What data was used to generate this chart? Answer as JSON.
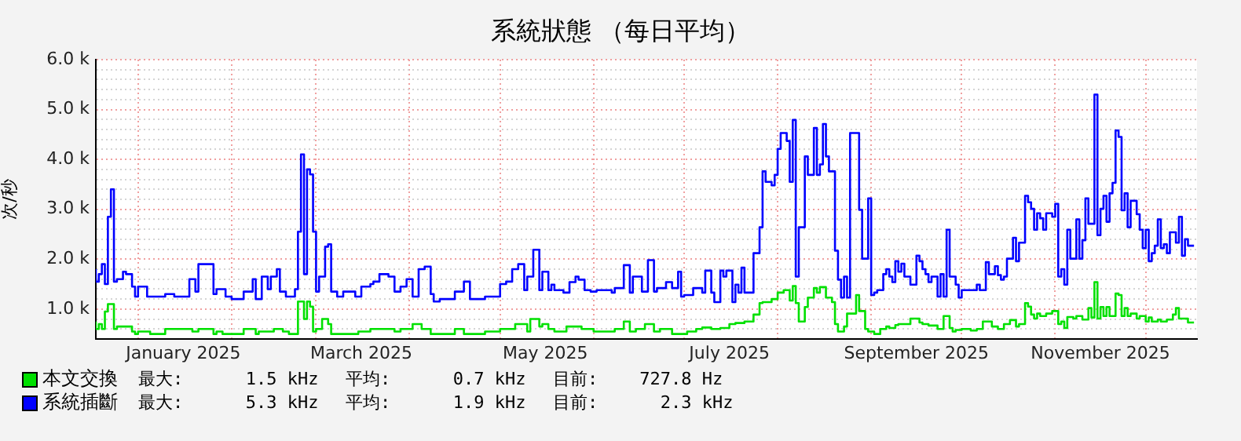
{
  "chart_data": {
    "type": "step",
    "title": "系統狀態 （每日平均）",
    "ylabel": "次/秒",
    "xlim": [
      "2024-12-18",
      "2025-12-18"
    ],
    "xticks": [
      {
        "value": "2025-01-01",
        "label": null
      },
      {
        "value": "2025-01-16",
        "label": "January 2025"
      },
      {
        "value": "2025-02-01",
        "label": null
      },
      {
        "value": "2025-03-01",
        "label": null
      },
      {
        "value": "2025-03-16",
        "label": "March 2025"
      },
      {
        "value": "2025-04-01",
        "label": null
      },
      {
        "value": "2025-05-01",
        "label": null
      },
      {
        "value": "2025-05-16",
        "label": "May 2025"
      },
      {
        "value": "2025-06-01",
        "label": null
      },
      {
        "value": "2025-07-01",
        "label": null
      },
      {
        "value": "2025-07-16",
        "label": "July 2025"
      },
      {
        "value": "2025-08-01",
        "label": null
      },
      {
        "value": "2025-09-01",
        "label": null
      },
      {
        "value": "2025-09-16",
        "label": "September 2025"
      },
      {
        "value": "2025-10-01",
        "label": null
      },
      {
        "value": "2025-11-01",
        "label": null
      },
      {
        "value": "2025-11-16",
        "label": "November 2025"
      },
      {
        "value": "2025-12-01",
        "label": null
      }
    ],
    "ylim": [
      400,
      6000
    ],
    "yticks": [
      {
        "value": 600,
        "label": null
      },
      {
        "value": 800,
        "label": null
      },
      {
        "value": 1000,
        "label": "1.0 k"
      },
      {
        "value": 1200,
        "label": null
      },
      {
        "value": 1400,
        "label": null
      },
      {
        "value": 1600,
        "label": null
      },
      {
        "value": 1800,
        "label": null
      },
      {
        "value": 2000,
        "label": "2.0 k"
      },
      {
        "value": 2200,
        "label": null
      },
      {
        "value": 2400,
        "label": null
      },
      {
        "value": 2600,
        "label": null
      },
      {
        "value": 2800,
        "label": null
      },
      {
        "value": 3000,
        "label": "3.0 k"
      },
      {
        "value": 3200,
        "label": null
      },
      {
        "value": 3400,
        "label": null
      },
      {
        "value": 3600,
        "label": null
      },
      {
        "value": 3800,
        "label": null
      },
      {
        "value": 4000,
        "label": "4.0 k"
      },
      {
        "value": 4200,
        "label": null
      },
      {
        "value": 4400,
        "label": null
      },
      {
        "value": 4600,
        "label": null
      },
      {
        "value": 4800,
        "label": null
      },
      {
        "value": 5000,
        "label": "5.0 k"
      },
      {
        "value": 5200,
        "label": null
      },
      {
        "value": 5400,
        "label": null
      },
      {
        "value": 5600,
        "label": null
      },
      {
        "value": 5800,
        "label": null
      },
      {
        "value": 6000,
        "label": "6.0 k"
      }
    ],
    "grid": true,
    "legend": "bottom left",
    "annotations": [
      "最大:      1.5 kHz",
      "平均:      0.7 kHz",
      "目前:    727.8 Hz",
      "最大:      5.3 kHz",
      "平均:      1.9 kHz",
      "目前:      2.3 kHz"
    ],
    "series": [
      {
        "name": "本文交換",
        "color": "#00e000",
        "x": [
          "2024-12-18",
          "2024-12-19",
          "2024-12-20",
          "2024-12-21",
          "2024-12-22",
          "2024-12-23",
          "2024-12-24",
          "2024-12-25",
          "2024-12-28",
          "2024-12-30",
          "2024-12-31",
          "2025-01-01",
          "2025-01-05",
          "2025-01-06",
          "2025-01-10",
          "2025-01-19",
          "2025-01-21",
          "2025-01-26",
          "2025-01-27",
          "2025-01-29",
          "2025-02-01",
          "2025-02-05",
          "2025-02-09",
          "2025-02-10",
          "2025-02-13",
          "2025-02-15",
          "2025-02-18",
          "2025-02-20",
          "2025-02-23",
          "2025-02-25",
          "2025-02-26",
          "2025-02-27",
          "2025-02-28",
          "2025-03-01",
          "2025-03-03",
          "2025-03-05",
          "2025-03-06",
          "2025-03-08",
          "2025-03-11",
          "2025-03-15",
          "2025-03-19",
          "2025-03-22",
          "2025-03-27",
          "2025-03-29",
          "2025-04-02",
          "2025-04-05",
          "2025-04-08",
          "2025-04-10",
          "2025-04-16",
          "2025-04-19",
          "2025-04-23",
          "2025-04-26",
          "2025-05-01",
          "2025-05-03",
          "2025-05-06",
          "2025-05-09",
          "2025-05-10",
          "2025-05-11",
          "2025-05-14",
          "2025-05-15",
          "2025-05-17",
          "2025-05-19",
          "2025-05-20",
          "2025-05-23",
          "2025-05-25",
          "2025-05-28",
          "2025-06-01",
          "2025-06-04",
          "2025-06-08",
          "2025-06-11",
          "2025-06-13",
          "2025-06-15",
          "2025-06-18",
          "2025-06-21",
          "2025-06-23",
          "2025-06-27",
          "2025-06-30",
          "2025-07-02",
          "2025-07-05",
          "2025-07-07",
          "2025-07-10",
          "2025-07-13",
          "2025-07-16",
          "2025-07-18",
          "2025-07-21",
          "2025-07-24",
          "2025-07-26",
          "2025-07-27",
          "2025-07-30",
          "2025-08-01",
          "2025-08-03",
          "2025-08-05",
          "2025-08-06",
          "2025-08-07",
          "2025-08-08",
          "2025-08-10",
          "2025-08-11",
          "2025-08-13",
          "2025-08-14",
          "2025-08-15",
          "2025-08-17",
          "2025-08-19",
          "2025-08-20",
          "2025-08-21",
          "2025-08-23",
          "2025-08-24",
          "2025-08-27",
          "2025-08-28",
          "2025-08-30",
          "2025-08-31",
          "2025-09-02",
          "2025-09-04",
          "2025-09-06",
          "2025-09-07",
          "2025-09-09",
          "2025-09-10",
          "2025-09-14",
          "2025-09-17",
          "2025-09-18",
          "2025-09-20",
          "2025-09-23",
          "2025-09-25",
          "2025-09-27",
          "2025-09-28",
          "2025-09-29",
          "2025-10-01",
          "2025-10-04",
          "2025-10-06",
          "2025-10-08",
          "2025-10-11",
          "2025-10-13",
          "2025-10-15",
          "2025-10-17",
          "2025-10-19",
          "2025-10-20",
          "2025-10-22",
          "2025-10-23",
          "2025-10-24",
          "2025-10-25",
          "2025-10-26",
          "2025-10-27",
          "2025-10-29",
          "2025-10-31",
          "2025-11-02",
          "2025-11-03",
          "2025-11-04",
          "2025-11-05",
          "2025-11-07",
          "2025-11-08",
          "2025-11-10",
          "2025-11-12",
          "2025-11-13",
          "2025-11-14",
          "2025-11-15",
          "2025-11-16",
          "2025-11-17",
          "2025-11-18",
          "2025-11-19",
          "2025-11-21",
          "2025-11-22",
          "2025-11-23",
          "2025-11-24",
          "2025-11-25",
          "2025-11-26",
          "2025-11-28",
          "2025-11-29",
          "2025-12-01",
          "2025-12-02",
          "2025-12-03",
          "2025-12-05",
          "2025-12-06",
          "2025-12-08",
          "2025-12-10",
          "2025-12-11",
          "2025-12-12",
          "2025-12-14",
          "2025-12-15",
          "2025-12-16",
          "2025-12-17"
        ],
        "values": [
          750,
          600,
          700,
          600,
          950,
          1100,
          1100,
          600,
          650,
          650,
          550,
          500,
          550,
          500,
          500,
          600,
          550,
          600,
          500,
          550,
          500,
          500,
          600,
          500,
          550,
          550,
          600,
          550,
          500,
          1150,
          800,
          1150,
          1050,
          550,
          600,
          800,
          700,
          500,
          500,
          500,
          550,
          600,
          600,
          550,
          600,
          700,
          600,
          500,
          500,
          600,
          500,
          500,
          550,
          600,
          600,
          700,
          700,
          550,
          800,
          650,
          700,
          600,
          550,
          550,
          650,
          650,
          600,
          550,
          550,
          600,
          750,
          550,
          600,
          700,
          550,
          600,
          500,
          500,
          550,
          600,
          630,
          600,
          620,
          700,
          720,
          750,
          890,
          1120,
          1140,
          1200,
          1330,
          1380,
          1170,
          1460,
          1120,
          750,
          1040,
          1230,
          1420,
          1330,
          1440,
          1230,
          1140,
          700,
          550,
          650,
          910,
          1280,
          960,
          600,
          550,
          500,
          600,
          650,
          620,
          680,
          700,
          810,
          730,
          700,
          670,
          600,
          860,
          620,
          550,
          580,
          600,
          570,
          600,
          750,
          650,
          600,
          700,
          780,
          650,
          700,
          1120,
          1050,
          890,
          810,
          910,
          860,
          910,
          960,
          700,
          750,
          620,
          840,
          810,
          860,
          790,
          1020,
          830,
          1540,
          810,
          1040,
          860,
          1040,
          860,
          1310,
          1280,
          860,
          1020,
          860,
          910,
          810,
          860,
          750,
          830,
          750,
          790,
          750,
          790,
          890,
          1020,
          810,
          810,
          730,
          730
        ]
      },
      {
        "name": "系統插斷",
        "color": "#0000ff",
        "x": [
          "2024-12-18",
          "2024-12-19",
          "2024-12-20",
          "2024-12-21",
          "2024-12-22",
          "2024-12-23",
          "2024-12-24",
          "2024-12-25",
          "2024-12-27",
          "2024-12-28",
          "2024-12-30",
          "2024-12-31",
          "2025-01-01",
          "2025-01-04",
          "2025-01-06",
          "2025-01-10",
          "2025-01-13",
          "2025-01-15",
          "2025-01-18",
          "2025-01-20",
          "2025-01-21",
          "2025-01-26",
          "2025-01-27",
          "2025-01-30",
          "2025-02-01",
          "2025-02-05",
          "2025-02-08",
          "2025-02-09",
          "2025-02-11",
          "2025-02-13",
          "2025-02-14",
          "2025-02-16",
          "2025-02-17",
          "2025-02-19",
          "2025-02-22",
          "2025-02-23",
          "2025-02-24",
          "2025-02-25",
          "2025-02-26",
          "2025-02-27",
          "2025-02-28",
          "2025-03-01",
          "2025-03-02",
          "2025-03-04",
          "2025-03-05",
          "2025-03-06",
          "2025-03-08",
          "2025-03-10",
          "2025-03-14",
          "2025-03-16",
          "2025-03-19",
          "2025-03-20",
          "2025-03-22",
          "2025-03-25",
          "2025-03-27",
          "2025-03-29",
          "2025-03-31",
          "2025-04-02",
          "2025-04-04",
          "2025-04-06",
          "2025-04-08",
          "2025-04-09",
          "2025-04-11",
          "2025-04-16",
          "2025-04-19",
          "2025-04-21",
          "2025-04-23",
          "2025-04-26",
          "2025-04-29",
          "2025-05-01",
          "2025-05-03",
          "2025-05-05",
          "2025-05-07",
          "2025-05-09",
          "2025-05-10",
          "2025-05-12",
          "2025-05-14",
          "2025-05-15",
          "2025-05-17",
          "2025-05-18",
          "2025-05-19",
          "2025-05-22",
          "2025-05-24",
          "2025-05-26",
          "2025-05-27",
          "2025-05-29",
          "2025-05-31",
          "2025-06-02",
          "2025-06-07",
          "2025-06-08",
          "2025-06-11",
          "2025-06-13",
          "2025-06-14",
          "2025-06-17",
          "2025-06-19",
          "2025-06-21",
          "2025-06-22",
          "2025-06-25",
          "2025-06-27",
          "2025-06-29",
          "2025-06-30",
          "2025-07-01",
          "2025-07-04",
          "2025-07-07",
          "2025-07-08",
          "2025-07-10",
          "2025-07-11",
          "2025-07-13",
          "2025-07-14",
          "2025-07-15",
          "2025-07-17",
          "2025-07-18",
          "2025-07-19",
          "2025-07-20",
          "2025-07-21",
          "2025-07-24",
          "2025-07-26",
          "2025-07-27",
          "2025-07-28",
          "2025-07-30",
          "2025-07-31",
          "2025-08-01",
          "2025-08-02",
          "2025-08-04",
          "2025-08-05",
          "2025-08-06",
          "2025-08-07",
          "2025-08-08",
          "2025-08-10",
          "2025-08-11",
          "2025-08-13",
          "2025-08-14",
          "2025-08-15",
          "2025-08-16",
          "2025-08-17",
          "2025-08-18",
          "2025-08-20",
          "2025-08-21",
          "2025-08-22",
          "2025-08-23",
          "2025-08-24",
          "2025-08-25",
          "2025-08-27",
          "2025-08-28",
          "2025-08-29",
          "2025-08-31",
          "2025-09-01",
          "2025-09-02",
          "2025-09-03",
          "2025-09-05",
          "2025-09-06",
          "2025-09-07",
          "2025-09-08",
          "2025-09-09",
          "2025-09-10",
          "2025-09-11",
          "2025-09-12",
          "2025-09-14",
          "2025-09-16",
          "2025-09-17",
          "2025-09-18",
          "2025-09-19",
          "2025-09-20",
          "2025-09-21",
          "2025-09-23",
          "2025-09-24",
          "2025-09-25",
          "2025-09-26",
          "2025-09-27",
          "2025-09-29",
          "2025-09-30",
          "2025-10-01",
          "2025-10-03",
          "2025-10-06",
          "2025-10-07",
          "2025-10-09",
          "2025-10-10",
          "2025-10-12",
          "2025-10-13",
          "2025-10-14",
          "2025-10-15",
          "2025-10-16",
          "2025-10-18",
          "2025-10-19",
          "2025-10-20",
          "2025-10-22",
          "2025-10-23",
          "2025-10-24",
          "2025-10-25",
          "2025-10-26",
          "2025-10-27",
          "2025-10-28",
          "2025-10-29",
          "2025-10-31",
          "2025-11-01",
          "2025-11-02",
          "2025-11-03",
          "2025-11-04",
          "2025-11-05",
          "2025-11-06",
          "2025-11-08",
          "2025-11-09",
          "2025-11-10",
          "2025-11-11",
          "2025-11-12",
          "2025-11-14",
          "2025-11-15",
          "2025-11-16",
          "2025-11-17",
          "2025-11-18",
          "2025-11-19",
          "2025-11-20",
          "2025-11-21",
          "2025-11-22",
          "2025-11-23",
          "2025-11-24",
          "2025-11-25",
          "2025-11-26",
          "2025-11-28",
          "2025-11-29",
          "2025-11-30",
          "2025-12-01",
          "2025-12-02",
          "2025-12-03",
          "2025-12-04",
          "2025-12-05",
          "2025-12-06",
          "2025-12-07",
          "2025-12-08",
          "2025-12-09",
          "2025-12-11",
          "2025-12-12",
          "2025-12-13",
          "2025-12-14",
          "2025-12-15",
          "2025-12-16",
          "2025-12-17"
        ],
        "values": [
          1800,
          1550,
          1700,
          1900,
          1500,
          2850,
          3400,
          1550,
          1600,
          1750,
          1700,
          1450,
          1250,
          1450,
          1250,
          1250,
          1300,
          1250,
          1250,
          1600,
          1350,
          1900,
          1300,
          1400,
          1250,
          1200,
          1350,
          1600,
          1200,
          1650,
          1400,
          1650,
          1800,
          1350,
          1250,
          1400,
          2550,
          4100,
          1700,
          3800,
          3700,
          2550,
          1350,
          1650,
          2250,
          2300,
          1350,
          1250,
          1350,
          1250,
          1450,
          1500,
          1550,
          1700,
          1650,
          1350,
          1450,
          1600,
          1250,
          1800,
          1850,
          1300,
          1150,
          1200,
          1350,
          1550,
          1200,
          1200,
          1250,
          1250,
          1500,
          1550,
          1800,
          1900,
          1380,
          1650,
          2190,
          1380,
          1750,
          1380,
          1490,
          1380,
          1330,
          1540,
          1650,
          1590,
          1380,
          1350,
          1380,
          1330,
          1420,
          1880,
          1330,
          1650,
          1350,
          1980,
          1350,
          1420,
          1540,
          1420,
          1750,
          1250,
          1280,
          1420,
          1330,
          1770,
          1330,
          1140,
          1770,
          1650,
          1770,
          1140,
          1490,
          1330,
          1830,
          1330,
          2120,
          2640,
          3760,
          3550,
          3480,
          3690,
          4210,
          4530,
          4370,
          3550,
          4790,
          1650,
          2640,
          4060,
          3690,
          4630,
          3690,
          3900,
          4710,
          4060,
          3760,
          2170,
          1590,
          1230,
          1650,
          1230,
          4530,
          4530,
          2990,
          2010,
          3220,
          1280,
          1330,
          1380,
          1700,
          1800,
          1650,
          1540,
          1960,
          1750,
          1910,
          1650,
          1490,
          2070,
          1960,
          1800,
          1700,
          1540,
          1650,
          1250,
          1700,
          1250,
          2590,
          1650,
          1490,
          1230,
          1380,
          1380,
          1490,
          1380,
          1940,
          1700,
          1860,
          1680,
          1590,
          1650,
          2010,
          2430,
          1960,
          2330,
          3270,
          3140,
          3010,
          2590,
          2920,
          2820,
          2590,
          2920,
          2850,
          3110,
          1650,
          1800,
          1490,
          2590,
          2010,
          2800,
          2010,
          2380,
          3220,
          2710,
          5300,
          2480,
          3010,
          3270,
          2750,
          3320,
          3530,
          4580,
          4450,
          2980,
          3320,
          2640,
          3170,
          2900,
          2590,
          2220,
          2590,
          1960,
          2120,
          2270,
          2800,
          2220,
          2300,
          2120,
          2540,
          2330,
          2850,
          2070,
          2400,
          2270,
          2270
        ]
      }
    ]
  }
}
